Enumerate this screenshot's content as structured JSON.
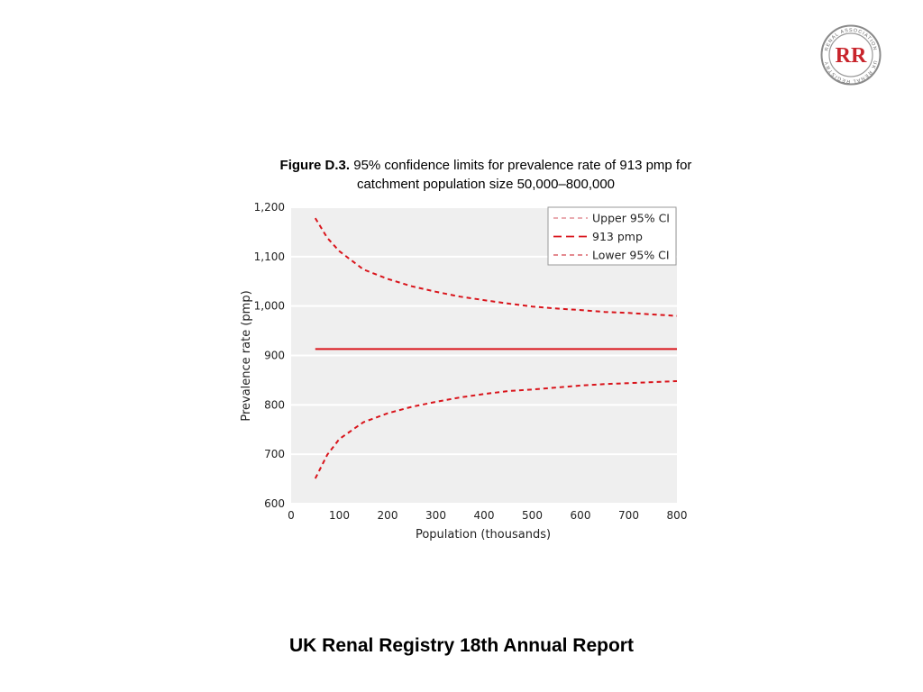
{
  "logo": {
    "monogram": "RR",
    "ring_text_top": "RENAL ASSOCIATION",
    "ring_text_bottom": "UK RENAL REGISTRY"
  },
  "caption": {
    "figure_label": "Figure D.3.",
    "text": "95% confidence limits for prevalence rate of 913 pmp for catchment population size 50,000–800,000"
  },
  "footer": {
    "text": "UK Renal Registry 18th Annual Report"
  },
  "chart_data": {
    "type": "line",
    "xlabel": "Population (thousands)",
    "ylabel": "Prevalence rate (pmp)",
    "xlim": [
      0,
      800
    ],
    "ylim": [
      600,
      1200
    ],
    "x_ticks": [
      0,
      100,
      200,
      300,
      400,
      500,
      600,
      700,
      800
    ],
    "x_tick_labels": [
      "0",
      "100",
      "200",
      "300",
      "400",
      "500",
      "600",
      "700",
      "800"
    ],
    "y_ticks": [
      600,
      700,
      800,
      900,
      1000,
      1100,
      1200
    ],
    "y_tick_labels": [
      "600",
      "700",
      "800",
      "900",
      "1,000",
      "1,100",
      "1,200"
    ],
    "grid": true,
    "legend_position": "top-right",
    "x": [
      50,
      75,
      100,
      150,
      200,
      250,
      300,
      350,
      400,
      450,
      500,
      550,
      600,
      650,
      700,
      750,
      800
    ],
    "series": [
      {
        "name": "Upper 95% CI",
        "style": "dashed",
        "color": "#e8a0a6",
        "values": [
          1178,
          1138,
          1111,
          1074,
          1055,
          1040,
          1029,
          1019,
          1012,
          1005,
          999,
          995,
          992,
          988,
          986,
          983,
          980
        ]
      },
      {
        "name": "913 pmp",
        "style": "solid",
        "color": "#d9141b",
        "values": [
          913,
          913,
          913,
          913,
          913,
          913,
          913,
          913,
          913,
          913,
          913,
          913,
          913,
          913,
          913,
          913,
          913
        ]
      },
      {
        "name": "Lower 95% CI",
        "style": "dashed",
        "color": "#d9141b",
        "values": [
          651,
          699,
          731,
          765,
          783,
          796,
          806,
          815,
          822,
          828,
          831,
          835,
          839,
          842,
          844,
          846,
          848
        ]
      }
    ],
    "legend_entries": [
      {
        "label": "Upper 95% CI",
        "color": "#e8a0a6",
        "style": "dashed"
      },
      {
        "label": "913 pmp",
        "color": "#d9141b",
        "style": "long-dashed"
      },
      {
        "label": "Lower 95% CI",
        "color": "#e07a80",
        "style": "dashed"
      }
    ],
    "plot_background": "#efefef"
  }
}
